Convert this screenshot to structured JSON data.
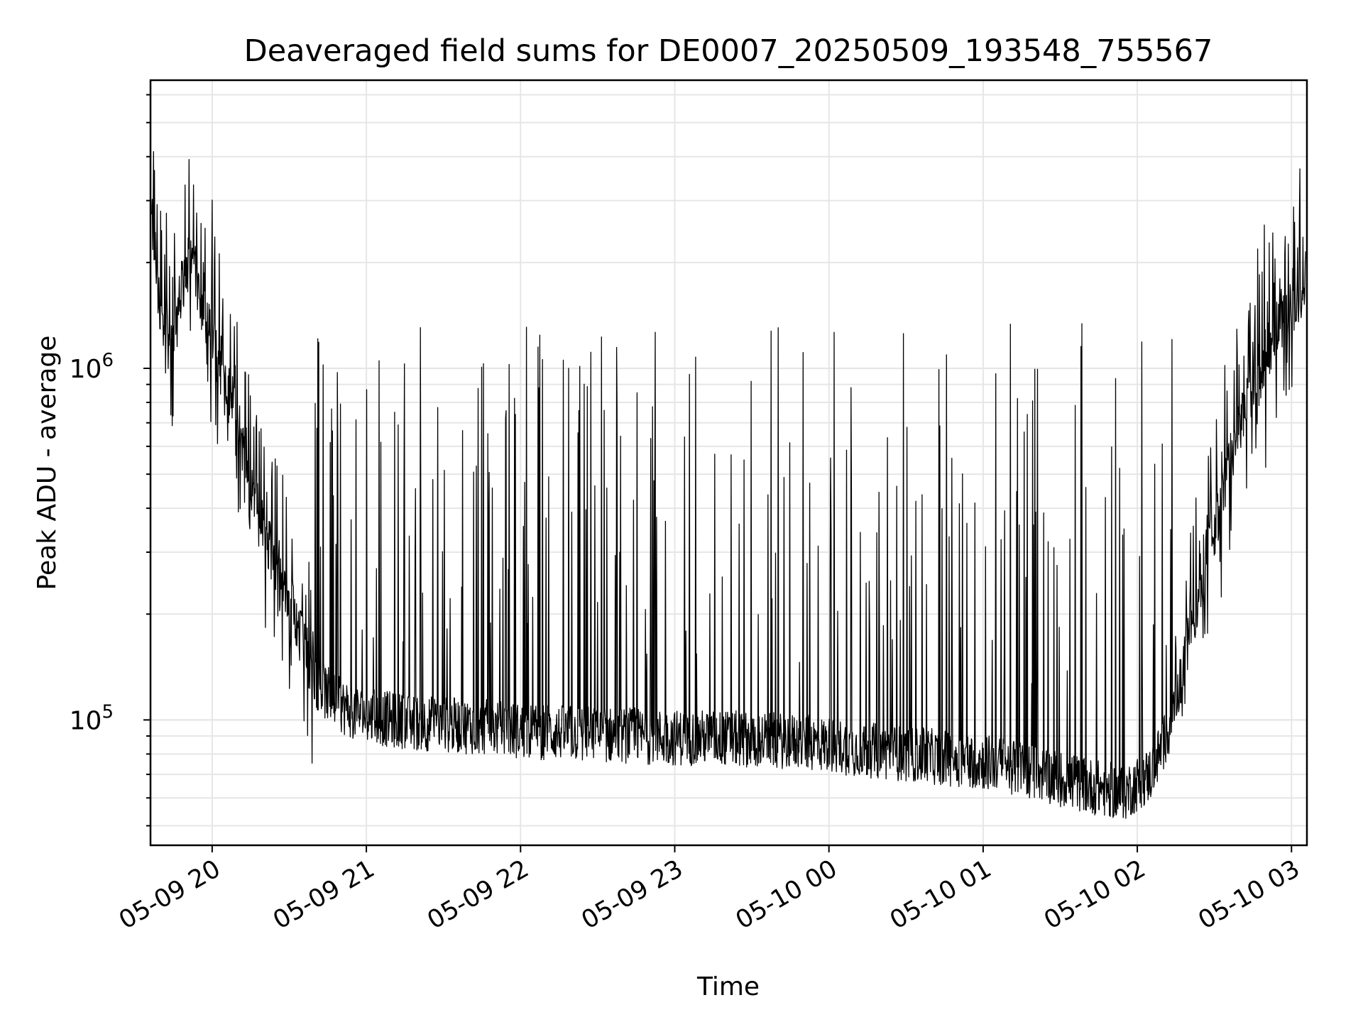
{
  "chart_data": {
    "type": "line",
    "title": "Deaveraged field sums for DE0007_20250509_193548_755567",
    "xlabel": "Time",
    "ylabel": "Peak ADU - average",
    "x_type": "datetime",
    "y_scale": "log",
    "xlim": [
      "2025-05-09T19:36:00",
      "2025-05-10T03:06:00"
    ],
    "ylim": [
      44000,
      6600000
    ],
    "x_ticks": [
      {
        "t": "2025-05-09T20:00:00",
        "label": "05-09 20"
      },
      {
        "t": "2025-05-09T21:00:00",
        "label": "05-09 21"
      },
      {
        "t": "2025-05-09T22:00:00",
        "label": "05-09 22"
      },
      {
        "t": "2025-05-09T23:00:00",
        "label": "05-09 23"
      },
      {
        "t": "2025-05-10T00:00:00",
        "label": "05-10 00"
      },
      {
        "t": "2025-05-10T01:00:00",
        "label": "05-10 01"
      },
      {
        "t": "2025-05-10T02:00:00",
        "label": "05-10 02"
      },
      {
        "t": "2025-05-10T03:00:00",
        "label": "05-10 03"
      }
    ],
    "y_ticks": [
      {
        "value": 100000,
        "base": "10",
        "exp": "5"
      },
      {
        "value": 1000000,
        "base": "10",
        "exp": "6"
      }
    ],
    "grid": true,
    "line_color": "#000000",
    "grid_color": "#e6e6e6",
    "series": [
      {
        "values_note_free": true,
        "points": [
          [
            "2025-05-09T19:36:00",
            2800000
          ],
          [
            "2025-05-09T19:40:00",
            1500000
          ],
          [
            "2025-05-09T19:44:00",
            1100000
          ],
          [
            "2025-05-09T19:48:00",
            1700000
          ],
          [
            "2025-05-09T19:52:00",
            2100000
          ],
          [
            "2025-05-09T19:56:00",
            1500000
          ],
          [
            "2025-05-09T20:00:00",
            1200000
          ],
          [
            "2025-05-09T20:04:00",
            900000
          ],
          [
            "2025-05-09T20:08:00",
            800000
          ],
          [
            "2025-05-09T20:12:00",
            600000
          ],
          [
            "2025-05-09T20:16:00",
            450000
          ],
          [
            "2025-05-09T20:20:00",
            350000
          ],
          [
            "2025-05-09T20:24:00",
            280000
          ],
          [
            "2025-05-09T20:28:00",
            240000
          ],
          [
            "2025-05-09T20:32:00",
            200000
          ],
          [
            "2025-05-09T20:36:00",
            160000
          ],
          [
            "2025-05-09T20:40:00",
            130000
          ],
          [
            "2025-05-09T20:44:00",
            120000
          ],
          [
            "2025-05-09T20:48:00",
            112000
          ],
          [
            "2025-05-09T20:52:00",
            108000
          ],
          [
            "2025-05-09T20:56:00",
            105000
          ],
          [
            "2025-05-09T21:00:00",
            103000
          ],
          [
            "2025-05-09T21:10:00",
            100000
          ],
          [
            "2025-05-09T21:20:00",
            98000
          ],
          [
            "2025-05-09T21:30:00",
            97000
          ],
          [
            "2025-05-09T21:40:00",
            96000
          ],
          [
            "2025-05-09T21:50:00",
            95000
          ],
          [
            "2025-05-09T22:00:00",
            93000
          ],
          [
            "2025-05-09T22:15:00",
            92000
          ],
          [
            "2025-05-09T22:30:00",
            91000
          ],
          [
            "2025-05-09T22:45:00",
            90000
          ],
          [
            "2025-05-09T23:00:00",
            89000
          ],
          [
            "2025-05-09T23:15:00",
            89000
          ],
          [
            "2025-05-09T23:30:00",
            88000
          ],
          [
            "2025-05-09T23:45:00",
            87000
          ],
          [
            "2025-05-10T00:00:00",
            85000
          ],
          [
            "2025-05-10T00:15:00",
            82000
          ],
          [
            "2025-05-10T00:30:00",
            80000
          ],
          [
            "2025-05-10T00:45:00",
            78000
          ],
          [
            "2025-05-10T01:00:00",
            76000
          ],
          [
            "2025-05-10T01:15:00",
            73000
          ],
          [
            "2025-05-10T01:30:00",
            68000
          ],
          [
            "2025-05-10T01:45:00",
            64000
          ],
          [
            "2025-05-10T01:55:00",
            62000
          ],
          [
            "2025-05-10T02:05:00",
            70000
          ],
          [
            "2025-05-10T02:10:00",
            85000
          ],
          [
            "2025-05-10T02:15:00",
            110000
          ],
          [
            "2025-05-10T02:20:00",
            170000
          ],
          [
            "2025-05-10T02:25:00",
            250000
          ],
          [
            "2025-05-10T02:30:00",
            350000
          ],
          [
            "2025-05-10T02:35:00",
            500000
          ],
          [
            "2025-05-10T02:40:00",
            700000
          ],
          [
            "2025-05-10T02:45:00",
            900000
          ],
          [
            "2025-05-10T02:50:00",
            1100000
          ],
          [
            "2025-05-10T02:55:00",
            1300000
          ],
          [
            "2025-05-10T03:00:00",
            1500000
          ],
          [
            "2025-05-10T03:06:00",
            1700000
          ]
        ]
      }
    ]
  }
}
